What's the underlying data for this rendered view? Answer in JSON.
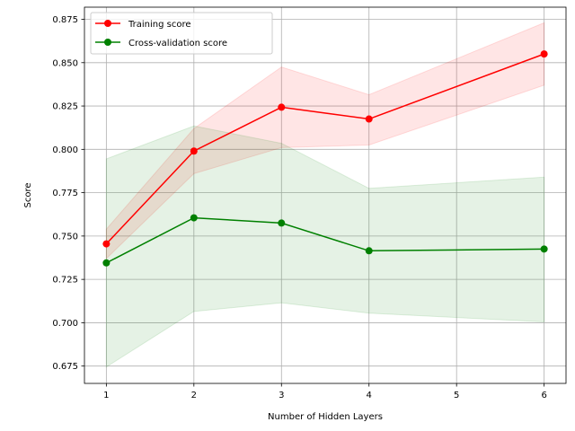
{
  "chart_data": {
    "type": "line",
    "title": "",
    "xlabel": "Number of Hidden Layers",
    "ylabel": "Score",
    "x": [
      1,
      2,
      3,
      4,
      5,
      6
    ],
    "xticks": [
      "1",
      "2",
      "3",
      "4",
      "5",
      "6"
    ],
    "xlim": [
      0.75,
      6.25
    ],
    "ylim": [
      0.665,
      0.882
    ],
    "yticks": [
      "0.675",
      "0.700",
      "0.725",
      "0.750",
      "0.775",
      "0.800",
      "0.825",
      "0.850",
      "0.875"
    ],
    "grid": true,
    "legend": "upper-left",
    "series": [
      {
        "name": "Training score",
        "color": "#ff0000",
        "x": [
          1,
          2,
          3,
          4,
          6
        ],
        "values": [
          0.7455,
          0.799,
          0.8243,
          0.8175,
          0.855
        ],
        "band_upper": [
          0.754,
          0.812,
          0.8475,
          0.8315,
          0.873
        ],
        "band_lower": [
          0.737,
          0.786,
          0.801,
          0.8025,
          0.837
        ]
      },
      {
        "name": "Cross-validation score",
        "color": "#008000",
        "x": [
          1,
          2,
          3,
          4,
          6
        ],
        "values": [
          0.7345,
          0.7605,
          0.7575,
          0.7415,
          0.7425
        ],
        "band_upper": [
          0.7945,
          0.8135,
          0.8035,
          0.7775,
          0.784
        ],
        "band_lower": [
          0.6745,
          0.7065,
          0.7115,
          0.7055,
          0.7005
        ]
      }
    ]
  }
}
